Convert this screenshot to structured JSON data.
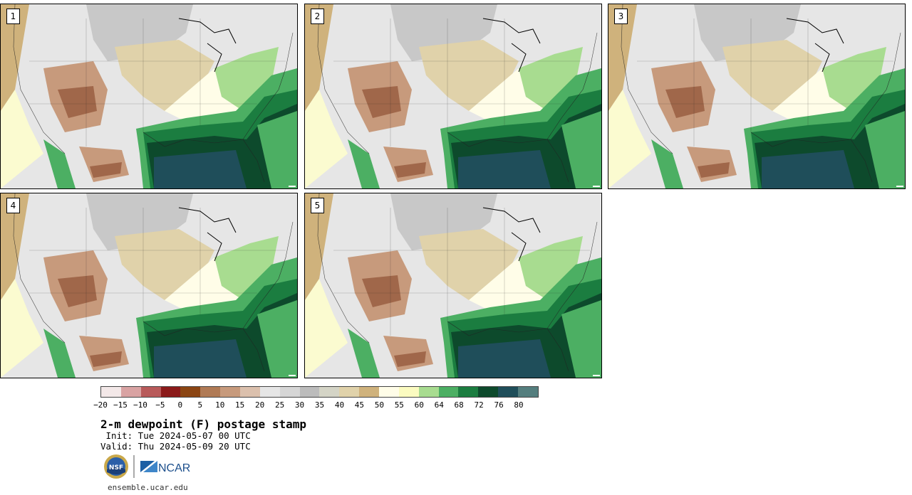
{
  "stamps": [
    {
      "label": "1"
    },
    {
      "label": "2"
    },
    {
      "label": "3"
    },
    {
      "label": "4"
    },
    {
      "label": "5"
    }
  ],
  "colorbar": {
    "colors": [
      "#f3e8e8",
      "#d9a3a3",
      "#b85a5a",
      "#8b1a1a",
      "#8b4513",
      "#b07a55",
      "#c79a7c",
      "#dbc0ad",
      "#e6e6e6",
      "#d6d6d6",
      "#bcbcbc",
      "#d4d4c6",
      "#e0d2aa",
      "#cfb27c",
      "#fffde8",
      "#fbfbc0",
      "#a8dc90",
      "#4caf63",
      "#1b7d40",
      "#0d4a2c",
      "#1f4e5a",
      "#547e7e"
    ],
    "tick_labels": [
      "−20",
      "−15",
      "−10",
      "−5",
      "0",
      "5",
      "10",
      "15",
      "20",
      "25",
      "30",
      "35",
      "40",
      "45",
      "50",
      "55",
      "60",
      "64",
      "68",
      "72",
      "76",
      "80"
    ]
  },
  "title": "2-m dewpoint (F) postage stamp",
  "init_text": " Init: Tue 2024-05-07 00 UTC",
  "valid_text": "Valid: Thu 2024-05-09 20 UTC",
  "logos": {
    "nsf": "NSF",
    "ncar": "NCAR"
  },
  "url": "ensemble.ucar.edu",
  "map_colors": {
    "ocean_pacific": "#fbfbd0",
    "ocean_gulf": "#1f4e5a",
    "humid_dark": "#0d4a2c",
    "humid_mid": "#1b7d40",
    "humid_light": "#4caf63",
    "humid_pale": "#a8dc90",
    "cream": "#fffde8",
    "tan": "#e0d2aa",
    "tan_dark": "#cfb27c",
    "gray_light": "#e6e6e6",
    "gray_mid": "#c8c8c8",
    "brown_light": "#c79a7c",
    "brown_dark": "#a0674a"
  }
}
